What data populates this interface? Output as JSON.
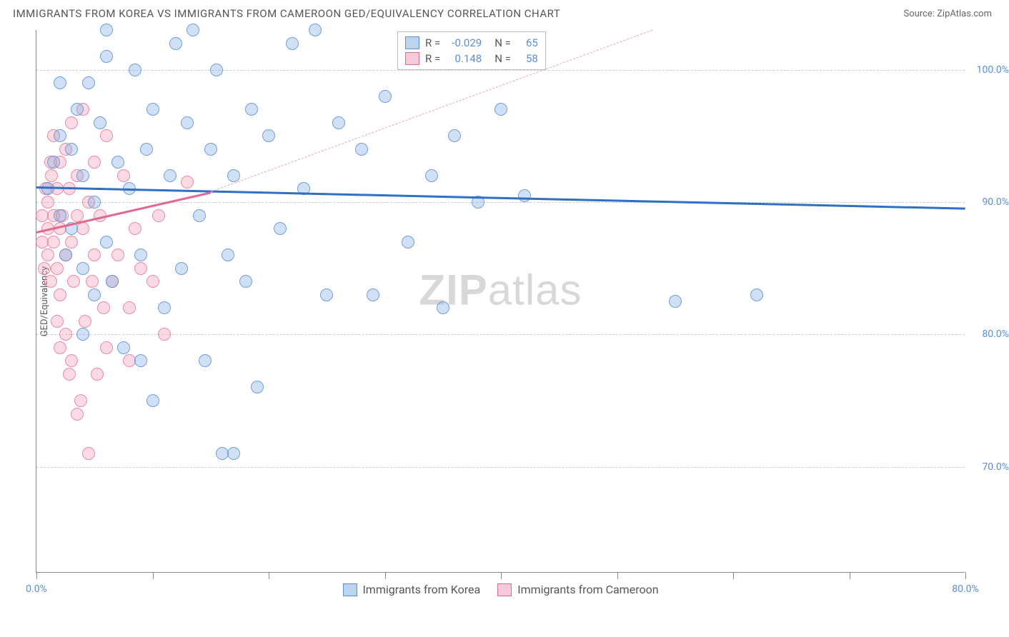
{
  "header": {
    "title": "IMMIGRANTS FROM KOREA VS IMMIGRANTS FROM CAMEROON GED/EQUIVALENCY CORRELATION CHART",
    "source": "Source: ZipAtlas.com"
  },
  "chart": {
    "type": "scatter",
    "y_axis_label": "GED/Equivalency",
    "x_range": [
      0,
      80
    ],
    "y_range": [
      62,
      103
    ],
    "y_ticks": [
      70,
      80,
      90,
      100
    ],
    "y_tick_labels": [
      "70.0%",
      "80.0%",
      "90.0%",
      "100.0%"
    ],
    "x_ticks": [
      0,
      10,
      20,
      30,
      40,
      50,
      60,
      70,
      80
    ],
    "x_visible_labels": {
      "0": "0.0%",
      "80": "80.0%"
    },
    "grid_color": "#cccccc",
    "axis_color": "#888888",
    "tick_label_color": "#5a8fd6",
    "background_color": "#ffffff",
    "watermark": "ZIPatlas",
    "series": {
      "korea": {
        "label": "Immigrants from Korea",
        "fill": "rgba(120,170,225,0.35)",
        "stroke": "#5a8fd6",
        "R": "-0.029",
        "N": "65",
        "trend": {
          "x1": 0,
          "y1": 91.2,
          "x2": 80,
          "y2": 89.6,
          "color": "#2f6fc4"
        },
        "points": [
          [
            1,
            91
          ],
          [
            1.5,
            93
          ],
          [
            2,
            89
          ],
          [
            2,
            95
          ],
          [
            2.5,
            86
          ],
          [
            3,
            94
          ],
          [
            3,
            88
          ],
          [
            3.5,
            97
          ],
          [
            4,
            85
          ],
          [
            4,
            92
          ],
          [
            4.5,
            99
          ],
          [
            5,
            83
          ],
          [
            5,
            90
          ],
          [
            5.5,
            96
          ],
          [
            6,
            87
          ],
          [
            6,
            101
          ],
          [
            6.5,
            84
          ],
          [
            7,
            93
          ],
          [
            7.5,
            79
          ],
          [
            8,
            91
          ],
          [
            8.5,
            100
          ],
          [
            9,
            86
          ],
          [
            9.5,
            94
          ],
          [
            10,
            75
          ],
          [
            10,
            97
          ],
          [
            11,
            82
          ],
          [
            11.5,
            92
          ],
          [
            12,
            102
          ],
          [
            12.5,
            85
          ],
          [
            13,
            96
          ],
          [
            13.5,
            103
          ],
          [
            14,
            89
          ],
          [
            14.5,
            78
          ],
          [
            15,
            94
          ],
          [
            15.5,
            100
          ],
          [
            16,
            71
          ],
          [
            16.5,
            86
          ],
          [
            17,
            92
          ],
          [
            18,
            84
          ],
          [
            18.5,
            97
          ],
          [
            19,
            76
          ],
          [
            20,
            95
          ],
          [
            21,
            88
          ],
          [
            22,
            102
          ],
          [
            23,
            91
          ],
          [
            24,
            103
          ],
          [
            25,
            83
          ],
          [
            26,
            96
          ],
          [
            28,
            94
          ],
          [
            30,
            98
          ],
          [
            32,
            87
          ],
          [
            34,
            92
          ],
          [
            35,
            82
          ],
          [
            36,
            95
          ],
          [
            38,
            90
          ],
          [
            40,
            97
          ],
          [
            4,
            80
          ],
          [
            9,
            78
          ],
          [
            17,
            71
          ],
          [
            29,
            83
          ],
          [
            42,
            90.5
          ],
          [
            55,
            82.5
          ],
          [
            62,
            83
          ],
          [
            2,
            99
          ],
          [
            6,
            103
          ]
        ]
      },
      "cameroon": {
        "label": "Immigrants from Cameroon",
        "fill": "rgba(240,150,175,0.35)",
        "stroke": "#e06a8f",
        "R": "0.148",
        "N": "58",
        "trend_solid": {
          "x1": 0,
          "y1": 87.8,
          "x2": 15,
          "y2": 90.8,
          "color": "#e06a8f"
        },
        "trend_dash": {
          "x1": 15,
          "y1": 90.8,
          "x2": 53,
          "y2": 103,
          "color": "#e8a5b8"
        },
        "points": [
          [
            0.5,
            89
          ],
          [
            0.5,
            87
          ],
          [
            0.8,
            91
          ],
          [
            1,
            88
          ],
          [
            1,
            86
          ],
          [
            1,
            90
          ],
          [
            1.2,
            84
          ],
          [
            1.3,
            92
          ],
          [
            1.5,
            87
          ],
          [
            1.5,
            89
          ],
          [
            1.5,
            95
          ],
          [
            1.8,
            85
          ],
          [
            1.8,
            91
          ],
          [
            2,
            88
          ],
          [
            2,
            93
          ],
          [
            2,
            83
          ],
          [
            2.2,
            89
          ],
          [
            2.5,
            86
          ],
          [
            2.5,
            94
          ],
          [
            2.5,
            80
          ],
          [
            2.8,
            91
          ],
          [
            3,
            87
          ],
          [
            3,
            96
          ],
          [
            3,
            78
          ],
          [
            3.2,
            84
          ],
          [
            3.5,
            89
          ],
          [
            3.5,
            92
          ],
          [
            3.8,
            75
          ],
          [
            4,
            88
          ],
          [
            4,
            97
          ],
          [
            4.2,
            81
          ],
          [
            4.5,
            90
          ],
          [
            4.5,
            71
          ],
          [
            5,
            86
          ],
          [
            5,
            93
          ],
          [
            5.2,
            77
          ],
          [
            5.5,
            89
          ],
          [
            5.8,
            82
          ],
          [
            6,
            95
          ],
          [
            6.5,
            84
          ],
          [
            7,
            86
          ],
          [
            7.5,
            92
          ],
          [
            8,
            78
          ],
          [
            8.5,
            88
          ],
          [
            9,
            85
          ],
          [
            10,
            84
          ],
          [
            10.5,
            89
          ],
          [
            11,
            80
          ],
          [
            13,
            91.5
          ],
          [
            2,
            79
          ],
          [
            3.5,
            74
          ],
          [
            1.2,
            93
          ],
          [
            0.7,
            85
          ],
          [
            4.8,
            84
          ],
          [
            1.8,
            81
          ],
          [
            2.8,
            77
          ],
          [
            6,
            79
          ],
          [
            8,
            82
          ]
        ]
      }
    },
    "legend_box": {
      "rows": [
        {
          "swatch": "korea",
          "r_label": "R =",
          "r_val": "-0.029",
          "n_label": "N =",
          "n_val": "65"
        },
        {
          "swatch": "cameroon",
          "r_label": "R =",
          "r_val": "0.148",
          "n_label": "N =",
          "n_val": "58"
        }
      ]
    }
  }
}
